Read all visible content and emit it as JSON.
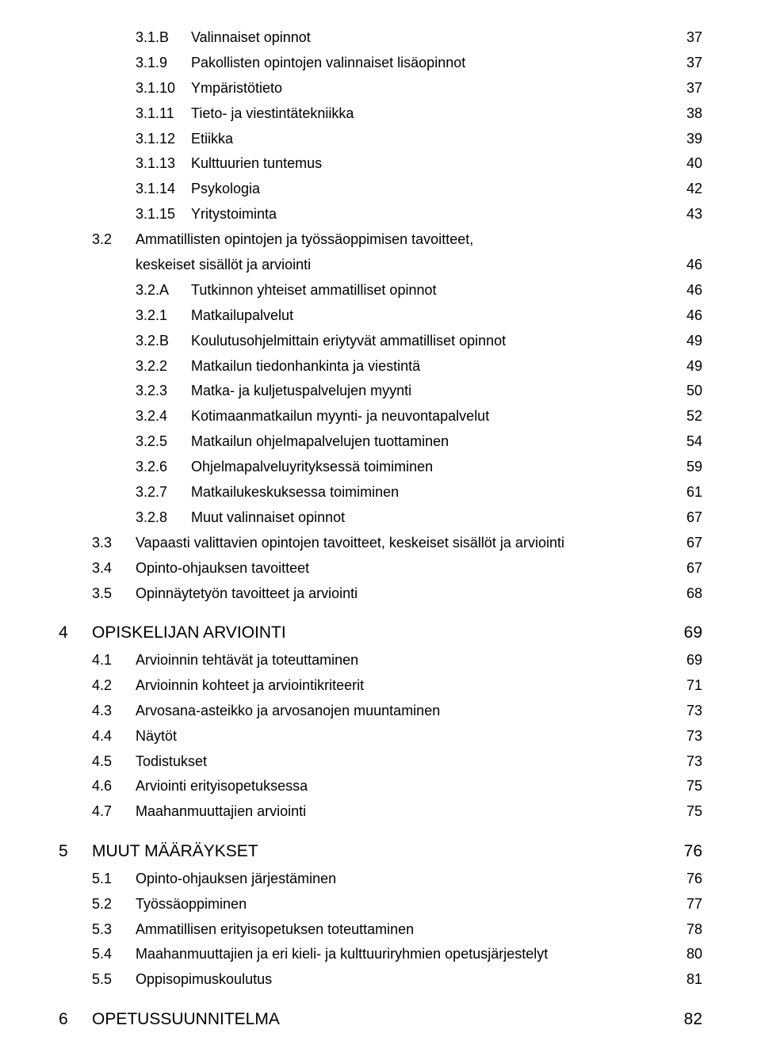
{
  "items": [
    {
      "level": "3a",
      "num": "3.1.B",
      "label": "Valinnaiset opinnot",
      "page": "37"
    },
    {
      "level": "3",
      "num": "3.1.9",
      "label": "Pakollisten opintojen valinnaiset lisäopinnot",
      "page": "37"
    },
    {
      "level": "3",
      "num": "3.1.10",
      "label": "Ympäristötieto",
      "page": "37"
    },
    {
      "level": "3",
      "num": "3.1.11",
      "label": "Tieto- ja viestintätekniikka",
      "page": "38"
    },
    {
      "level": "3",
      "num": "3.1.12",
      "label": "Etiikka",
      "page": "39"
    },
    {
      "level": "3",
      "num": "3.1.13",
      "label": "Kulttuurien tuntemus",
      "page": "40"
    },
    {
      "level": "3",
      "num": "3.1.14",
      "label": "Psykologia",
      "page": "42"
    },
    {
      "level": "3",
      "num": "3.1.15",
      "label": "Yritystoiminta",
      "page": "43"
    },
    {
      "level": "2w",
      "num": "3.2",
      "label": "Ammatillisten opintojen ja työssäoppimisen tavoitteet,",
      "label2": "keskeiset sisällöt ja arviointi",
      "page": "46"
    },
    {
      "level": "3a",
      "num": "3.2.A",
      "label": "Tutkinnon yhteiset ammatilliset opinnot",
      "page": "46"
    },
    {
      "level": "3",
      "num": "3.2.1",
      "label": "Matkailupalvelut",
      "page": "46"
    },
    {
      "level": "3a",
      "num": "3.2.B",
      "label": "Koulutusohjelmittain eriytyvät ammatilliset opinnot",
      "page": "49"
    },
    {
      "level": "3",
      "num": "3.2.2",
      "label": "Matkailun tiedonhankinta ja viestintä",
      "page": "49"
    },
    {
      "level": "3",
      "num": "3.2.3",
      "label": "Matka- ja kuljetuspalvelujen myynti",
      "page": "50"
    },
    {
      "level": "3",
      "num": "3.2.4",
      "label": "Kotimaanmatkailun myynti- ja neuvontapalvelut",
      "page": "52"
    },
    {
      "level": "3",
      "num": "3.2.5",
      "label": "Matkailun ohjelmapalvelujen tuottaminen",
      "page": "54"
    },
    {
      "level": "3",
      "num": "3.2.6",
      "label": "Ohjelmapalveluyrityksessä toimiminen",
      "page": "59"
    },
    {
      "level": "3",
      "num": "3.2.7",
      "label": "Matkailukeskuksessa toimiminen",
      "page": "61"
    },
    {
      "level": "3",
      "num": "3.2.8",
      "label": "Muut valinnaiset opinnot",
      "page": "67"
    },
    {
      "level": "2",
      "num": "3.3",
      "label": "Vapaasti valittavien opintojen tavoitteet, keskeiset sisällöt ja arviointi",
      "page": "67"
    },
    {
      "level": "2",
      "num": "3.4",
      "label": "Opinto-ohjauksen tavoitteet",
      "page": "67"
    },
    {
      "level": "2",
      "num": "3.5",
      "label": "Opinnäytetyön tavoitteet ja arviointi",
      "page": "68"
    },
    {
      "level": "1",
      "num": "4",
      "label": "OPISKELIJAN ARVIOINTI",
      "page": "69"
    },
    {
      "level": "2",
      "num": "4.1",
      "label": "Arvioinnin tehtävät ja toteuttaminen",
      "page": "69"
    },
    {
      "level": "2",
      "num": "4.2",
      "label": "Arvioinnin kohteet ja arviointikriteerit",
      "page": "71"
    },
    {
      "level": "2",
      "num": "4.3",
      "label": "Arvosana-asteikko ja arvosanojen muuntaminen",
      "page": "73"
    },
    {
      "level": "2",
      "num": "4.4",
      "label": "Näytöt",
      "page": "73"
    },
    {
      "level": "2",
      "num": "4.5",
      "label": "Todistukset",
      "page": "73"
    },
    {
      "level": "2",
      "num": "4.6",
      "label": "Arviointi erityisopetuksessa",
      "page": "75"
    },
    {
      "level": "2",
      "num": "4.7",
      "label": "Maahanmuuttajien arviointi",
      "page": "75"
    },
    {
      "level": "1",
      "num": "5",
      "label": "MUUT MÄÄRÄYKSET",
      "page": "76"
    },
    {
      "level": "2",
      "num": "5.1",
      "label": "Opinto-ohjauksen järjestäminen",
      "page": "76"
    },
    {
      "level": "2",
      "num": "5.2",
      "label": "Työssäoppiminen",
      "page": "77"
    },
    {
      "level": "2",
      "num": "5.3",
      "label": "Ammatillisen erityisopetuksen toteuttaminen",
      "page": "78"
    },
    {
      "level": "2",
      "num": "5.4",
      "label": "Maahanmuuttajien ja eri kieli- ja kulttuuriryhmien opetusjärjestelyt",
      "page": "80"
    },
    {
      "level": "2",
      "num": "5.5",
      "label": "Oppisopimuskoulutus",
      "page": "81"
    },
    {
      "level": "1",
      "num": "6",
      "label": "OPETUSSUUNNITELMA",
      "page": "82"
    }
  ]
}
